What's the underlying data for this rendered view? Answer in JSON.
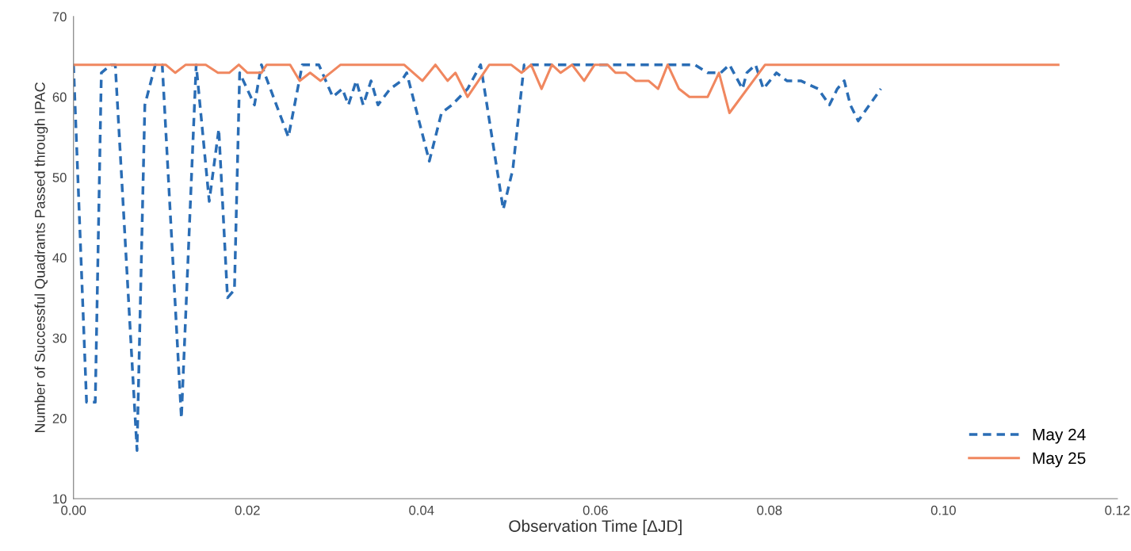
{
  "chart_data": {
    "type": "line",
    "xlabel": "Observation Time [ΔJD]",
    "ylabel": "Number of Successful Quadrants Passed through IPAC",
    "xlim": [
      0,
      0.12
    ],
    "xticks": [
      {
        "value": 0,
        "label": "0.00"
      },
      {
        "value": 0.02,
        "label": "0.02"
      },
      {
        "value": 0.04,
        "label": "0.04"
      },
      {
        "value": 0.06,
        "label": "0.06"
      },
      {
        "value": 0.08,
        "label": "0.08"
      },
      {
        "value": 0.1,
        "label": "0.10"
      },
      {
        "value": 0.12,
        "label": "0.12"
      }
    ],
    "ylim": [
      10,
      70
    ],
    "yticks": [
      10,
      20,
      30,
      40,
      50,
      60,
      70
    ],
    "grid": false,
    "legend": "bottom right",
    "series": [
      {
        "name": "May 24",
        "color": "#2a6db5",
        "line_style": "dashed",
        "x": [
          0.0,
          0.0015,
          0.0025,
          0.0032,
          0.0043,
          0.0048,
          0.0073,
          0.0082,
          0.0094,
          0.0102,
          0.0124,
          0.0141,
          0.0156,
          0.0167,
          0.0177,
          0.0185,
          0.0191,
          0.0208,
          0.0216,
          0.0247,
          0.0263,
          0.0282,
          0.0298,
          0.0309,
          0.0316,
          0.0325,
          0.0333,
          0.0342,
          0.035,
          0.0364,
          0.0377,
          0.0383,
          0.0409,
          0.0423,
          0.0435,
          0.0453,
          0.0468,
          0.0494,
          0.0505,
          0.0518,
          0.0644,
          0.0714,
          0.0729,
          0.0744,
          0.0754,
          0.0769,
          0.0774,
          0.0784,
          0.0793,
          0.0808,
          0.082,
          0.0836,
          0.0856,
          0.0869,
          0.0878,
          0.0886,
          0.0893,
          0.0902,
          0.0915,
          0.0928
        ],
        "values": [
          64,
          22,
          22,
          63,
          64,
          64,
          16,
          59,
          64,
          64,
          20,
          64,
          47,
          56,
          35,
          36,
          63,
          59,
          64,
          55,
          64,
          64,
          60,
          61,
          59,
          62,
          59,
          62,
          59,
          61,
          62,
          63,
          52,
          58,
          59,
          61,
          64,
          46,
          51,
          64,
          64,
          64,
          63,
          63,
          64,
          61,
          63,
          64,
          61,
          63,
          62,
          62,
          61,
          59,
          61,
          62,
          59,
          57,
          59,
          61
        ]
      },
      {
        "name": "May 25",
        "color": "#f0875f",
        "line_style": "solid",
        "x": [
          0.0,
          0.0106,
          0.0117,
          0.0129,
          0.0152,
          0.0166,
          0.0179,
          0.019,
          0.02,
          0.0216,
          0.0222,
          0.0249,
          0.026,
          0.0272,
          0.0284,
          0.0307,
          0.038,
          0.0401,
          0.0416,
          0.043,
          0.0439,
          0.0453,
          0.0478,
          0.0503,
          0.0515,
          0.0526,
          0.0538,
          0.055,
          0.056,
          0.0573,
          0.0587,
          0.0599,
          0.0614,
          0.0623,
          0.0635,
          0.0646,
          0.0661,
          0.0672,
          0.0683,
          0.0696,
          0.0708,
          0.0729,
          0.0742,
          0.0754,
          0.0795,
          0.1132
        ],
        "values": [
          64,
          64,
          63,
          64,
          64,
          63,
          63,
          64,
          63,
          63,
          64,
          64,
          62,
          63,
          62,
          64,
          64,
          62,
          64,
          62,
          63,
          60,
          64,
          64,
          63,
          64,
          61,
          64,
          63,
          64,
          62,
          64,
          64,
          63,
          63,
          62,
          62,
          61,
          64,
          61,
          60,
          60,
          63,
          58,
          64,
          64
        ]
      }
    ]
  }
}
